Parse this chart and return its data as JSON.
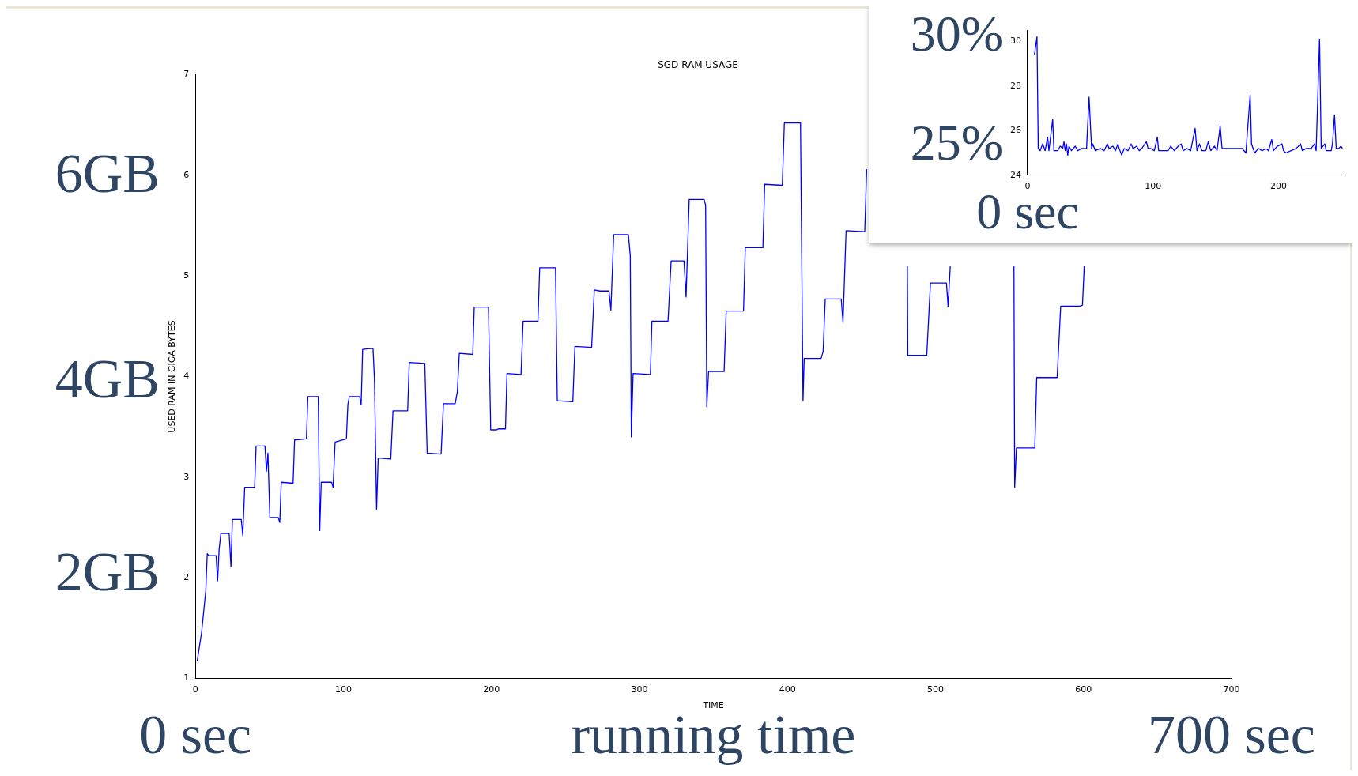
{
  "chart_data": [
    {
      "type": "line",
      "title": "SGD RAM USAGE",
      "xlabel": "TIME",
      "ylabel": "USED RAM IN GIGA BYTES",
      "x": [
        1.2,
        4.2,
        7,
        8,
        9,
        14,
        15,
        16,
        17.2,
        22.8,
        24,
        25,
        31,
        32,
        33.3,
        40,
        41,
        47,
        48,
        49,
        50.3,
        56,
        57,
        58,
        66,
        67,
        75,
        76,
        83,
        84,
        85,
        92,
        93,
        94.4,
        102,
        103,
        104,
        111,
        112,
        113,
        120,
        121,
        122.4,
        123.5,
        132,
        133.5,
        143.4,
        144.5,
        155,
        156.6,
        166,
        167.6,
        175.5,
        177,
        178.3,
        187.4,
        188.4,
        198,
        199.5,
        203.5,
        204.5,
        209.5,
        210.5,
        220,
        221.4,
        231.4,
        232.6,
        243.3,
        244.5,
        255,
        256.4,
        267.7,
        269.5,
        273.3,
        279.4,
        280.7,
        282.6,
        292.5,
        293.8,
        294.5,
        295.7,
        307.4,
        308.4,
        319.3,
        321.4,
        330.1,
        331.5,
        333.6,
        343.7,
        344.7,
        345.5,
        346.7,
        357.2,
        358.6,
        370.3,
        371.5,
        383.4,
        384.6,
        396.5,
        397.9,
        408.8,
        410.5,
        411.3,
        422.7,
        424.1,
        425.5,
        436.3,
        437.5,
        439.6,
        452.2,
        453.5,
        467,
        481,
        481.3,
        494.1,
        496.6,
        507.4,
        508.5,
        510,
        531,
        553,
        553.5,
        554.7,
        567.1,
        568.4,
        582.2,
        584.6,
        598.1,
        599.3,
        600.5
      ],
      "values": [
        1.17,
        1.46,
        1.87,
        2.24,
        2.22,
        2.22,
        1.97,
        2.28,
        2.44,
        2.44,
        2.11,
        2.58,
        2.58,
        2.42,
        2.9,
        2.9,
        3.31,
        3.31,
        3.06,
        3.24,
        2.6,
        2.6,
        2.55,
        2.95,
        2.94,
        3.37,
        3.38,
        3.8,
        3.8,
        2.47,
        2.95,
        2.95,
        2.9,
        3.35,
        3.38,
        3.72,
        3.8,
        3.8,
        3.72,
        4.27,
        4.28,
        3.97,
        2.68,
        3.19,
        3.18,
        3.66,
        3.66,
        4.14,
        4.13,
        3.24,
        3.23,
        3.73,
        3.73,
        3.85,
        4.23,
        4.22,
        4.69,
        4.69,
        3.47,
        3.47,
        3.48,
        3.48,
        4.03,
        4.02,
        4.55,
        4.55,
        5.08,
        5.08,
        3.76,
        3.75,
        4.3,
        4.29,
        4.86,
        4.85,
        4.85,
        4.66,
        5.41,
        5.41,
        5.2,
        3.4,
        4.03,
        4.02,
        4.55,
        4.55,
        5.15,
        5.15,
        4.79,
        5.76,
        5.76,
        5.7,
        3.7,
        4.05,
        4.05,
        4.65,
        4.65,
        5.28,
        5.28,
        5.91,
        5.9,
        6.52,
        6.52,
        3.76,
        4.18,
        4.18,
        4.25,
        4.77,
        4.77,
        4.54,
        5.45,
        5.44,
        6.06,
        null,
        5.1,
        4.21,
        4.21,
        4.93,
        4.93,
        4.7,
        5.1,
        null,
        5.1,
        2.9,
        3.29,
        3.29,
        3.99,
        3.99,
        4.7,
        4.7,
        4.71,
        5.1
      ],
      "color": "#0000ff",
      "xlim": [
        0,
        700
      ],
      "xticks": [
        0,
        100,
        200,
        300,
        400,
        500,
        600,
        700
      ],
      "ylim": [
        1,
        7
      ],
      "yticks": [
        1,
        2,
        3,
        4,
        5,
        6,
        7
      ],
      "annotations": [
        "6GB",
        "4GB",
        "2GB",
        "0 sec",
        "running time",
        "700 sec"
      ]
    },
    {
      "type": "line",
      "x": [
        5.5,
        7.5,
        8.5,
        10,
        12,
        14,
        16,
        17,
        20,
        21,
        24,
        26,
        28,
        29,
        30,
        31,
        32,
        33,
        35,
        38,
        40,
        43,
        47,
        49,
        51,
        52,
        54,
        58,
        61,
        63.5,
        65,
        68,
        70,
        72,
        73,
        75,
        77,
        80,
        82.5,
        84,
        87,
        89,
        91,
        94.7,
        96,
        98,
        101,
        103.4,
        104.5,
        112,
        114,
        117,
        120,
        122.4,
        124,
        127,
        130,
        133.5,
        135,
        137,
        139,
        142,
        144,
        146,
        149,
        151,
        153.5,
        155,
        158,
        162,
        165,
        168,
        171,
        174,
        177.4,
        178.5,
        181,
        184,
        187,
        190,
        192,
        194.6,
        196,
        199,
        202.8,
        204,
        206,
        210,
        214,
        217.6,
        219,
        222,
        226,
        228.7,
        230,
        232.7,
        234,
        236.9,
        238,
        242,
        243,
        244.6,
        246,
        248,
        249.8,
        251
      ],
      "values": [
        29.4,
        30.2,
        25.2,
        25.1,
        25.4,
        25.1,
        25.7,
        25.1,
        26.5,
        25.1,
        25.1,
        25.3,
        25.2,
        25.5,
        25.1,
        25.4,
        24.9,
        25.3,
        25.1,
        25.3,
        25.1,
        25.2,
        25.2,
        27.5,
        25.2,
        25.4,
        25.1,
        25.2,
        25.1,
        25.4,
        25.2,
        25.3,
        25.1,
        25.4,
        25.2,
        24.9,
        25.2,
        25.1,
        25.4,
        25.2,
        25.3,
        25.1,
        25.2,
        25.5,
        25.2,
        25.2,
        25.1,
        25.7,
        25.1,
        25.1,
        25.3,
        25.1,
        25.3,
        25.4,
        25.1,
        25.2,
        25.1,
        26.1,
        25.1,
        25.4,
        25.1,
        25.1,
        25.5,
        25.1,
        25.3,
        25.1,
        26.2,
        25.2,
        25.2,
        25.2,
        25.2,
        25.2,
        25.2,
        25,
        27.6,
        25.4,
        25,
        25.2,
        25.1,
        25.2,
        25.1,
        25.6,
        25.1,
        25.3,
        25.4,
        25.1,
        25,
        25.1,
        25.2,
        25.4,
        25.1,
        25.2,
        25.2,
        25.4,
        25.1,
        30.1,
        25.2,
        25.4,
        25.1,
        25.1,
        25.4,
        26.7,
        25.2,
        25.2,
        25.3,
        25.2
      ],
      "color": "#0000ff",
      "xlim": [
        0,
        252
      ],
      "xticks": [
        0,
        100,
        200
      ],
      "ylim": [
        24,
        30.5
      ],
      "yticks": [
        24,
        26,
        28,
        30
      ],
      "annotations": [
        "30%",
        "25%",
        "0 sec"
      ]
    }
  ]
}
